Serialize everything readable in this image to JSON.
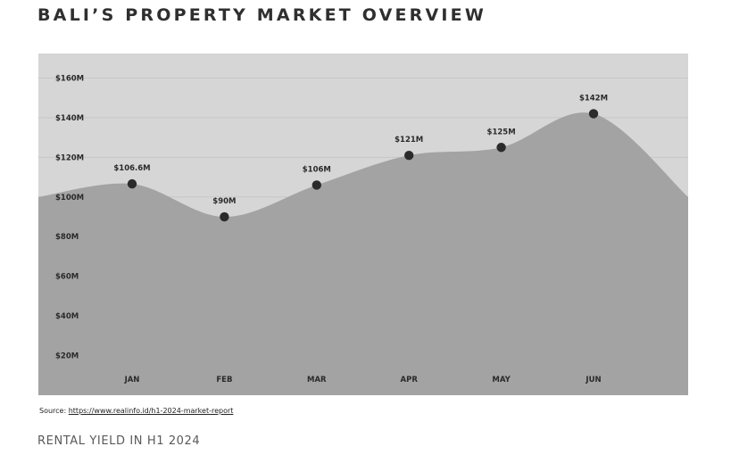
{
  "header": {
    "title": "BALI’S PROPERTY MARKET OVERVIEW"
  },
  "chart_data": {
    "type": "area",
    "title": "BALI’S PROPERTY MARKET OVERVIEW",
    "categories": [
      "JAN",
      "FEB",
      "MAR",
      "APR",
      "MAY",
      "JUN"
    ],
    "values": [
      106.6,
      90,
      106,
      121,
      125,
      142
    ],
    "data_labels": [
      "$106.6M",
      "$90M",
      "$106M",
      "$121M",
      "$125M",
      "$142M"
    ],
    "y_ticks": [
      20,
      40,
      60,
      80,
      100,
      120,
      140,
      160
    ],
    "y_tick_labels": [
      "$20M",
      "$40M",
      "$60M",
      "$80M",
      "$100M",
      "$120M",
      "$140M",
      "$160M"
    ],
    "ylim": [
      0,
      160
    ],
    "edge_values": {
      "start": 100,
      "end": 100
    },
    "grid": true,
    "colors": {
      "area": "#a3a3a3",
      "plot_bg": "#d6d6d6",
      "marker": "#2b2b2b"
    }
  },
  "footer": {
    "source_label": "Source:",
    "source_url": "https://www.realinfo.id/h1-2024-market-report",
    "caption": "RENTAL YIELD IN H1 2024"
  }
}
